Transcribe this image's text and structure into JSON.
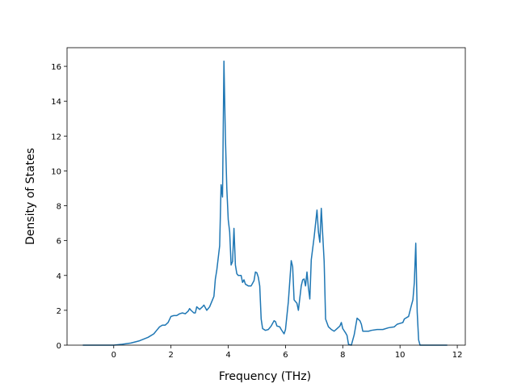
{
  "chart_data": {
    "type": "line",
    "xlabel": "Frequency (THz)",
    "ylabel": "Density of States",
    "color": "#1f77b4",
    "x": [
      -1.08,
      0,
      0.3,
      0.6,
      0.9,
      1.2,
      1.4,
      1.5,
      1.6,
      1.7,
      1.8,
      1.9,
      2.0,
      2.1,
      2.2,
      2.3,
      2.4,
      2.5,
      2.6,
      2.65,
      2.7,
      2.8,
      2.85,
      2.9,
      3.0,
      3.1,
      3.15,
      3.25,
      3.35,
      3.45,
      3.5,
      3.55,
      3.6,
      3.65,
      3.7,
      3.75,
      3.8,
      3.85,
      3.9,
      3.95,
      4.0,
      4.05,
      4.1,
      4.15,
      4.2,
      4.25,
      4.3,
      4.35,
      4.45,
      4.5,
      4.55,
      4.6,
      4.7,
      4.8,
      4.9,
      4.95,
      5.0,
      5.05,
      5.1,
      5.15,
      5.2,
      5.3,
      5.4,
      5.5,
      5.6,
      5.65,
      5.7,
      5.8,
      5.85,
      5.95,
      6.0,
      6.1,
      6.2,
      6.25,
      6.3,
      6.4,
      6.45,
      6.55,
      6.6,
      6.65,
      6.7,
      6.75,
      6.8,
      6.85,
      6.9,
      7.0,
      7.1,
      7.15,
      7.2,
      7.25,
      7.35,
      7.4,
      7.5,
      7.6,
      7.7,
      7.8,
      7.9,
      7.95,
      8.0,
      8.1,
      8.15,
      8.2,
      8.3,
      8.4,
      8.5,
      8.6,
      8.65,
      8.7,
      8.9,
      9.0,
      9.2,
      9.4,
      9.6,
      9.8,
      9.9,
      10.0,
      10.1,
      10.15,
      10.3,
      10.4,
      10.45,
      10.5,
      10.55,
      10.6,
      10.65,
      10.7,
      11.65
    ],
    "values": [
      0,
      0,
      0.05,
      0.12,
      0.25,
      0.45,
      0.65,
      0.85,
      1.05,
      1.15,
      1.15,
      1.3,
      1.65,
      1.7,
      1.7,
      1.8,
      1.85,
      1.8,
      1.95,
      2.1,
      2.0,
      1.85,
      1.85,
      2.2,
      2.05,
      2.2,
      2.3,
      2.0,
      2.2,
      2.6,
      2.8,
      3.8,
      4.3,
      5.0,
      5.7,
      9.2,
      8.5,
      16.3,
      12.0,
      9.0,
      7.2,
      6.5,
      4.6,
      4.8,
      6.7,
      4.6,
      4.1,
      4.0,
      4.0,
      3.6,
      3.75,
      3.5,
      3.4,
      3.4,
      3.7,
      4.2,
      4.15,
      3.9,
      3.4,
      1.5,
      0.95,
      0.85,
      0.9,
      1.1,
      1.4,
      1.35,
      1.1,
      1.05,
      0.9,
      0.65,
      0.9,
      2.5,
      4.85,
      4.5,
      2.6,
      2.4,
      2.0,
      3.4,
      3.75,
      3.8,
      3.4,
      4.2,
      3.3,
      2.65,
      4.9,
      6.2,
      7.75,
      6.5,
      5.9,
      7.85,
      4.8,
      1.5,
      1.05,
      0.9,
      0.8,
      0.95,
      1.1,
      1.3,
      0.95,
      0.7,
      0.55,
      0.05,
      0,
      0.6,
      1.55,
      1.4,
      1.2,
      0.8,
      0.8,
      0.85,
      0.9,
      0.9,
      1.0,
      1.05,
      1.2,
      1.25,
      1.3,
      1.5,
      1.65,
      2.3,
      2.6,
      3.6,
      5.85,
      1.9,
      0.3,
      0,
      0
    ],
    "xlim": [
      -1.63,
      12.28
    ],
    "ylim": [
      0,
      17.07
    ],
    "xticks": [
      0,
      2,
      4,
      6,
      8,
      10,
      12
    ],
    "yticks": [
      0,
      2,
      4,
      6,
      8,
      10,
      12,
      14,
      16
    ]
  }
}
